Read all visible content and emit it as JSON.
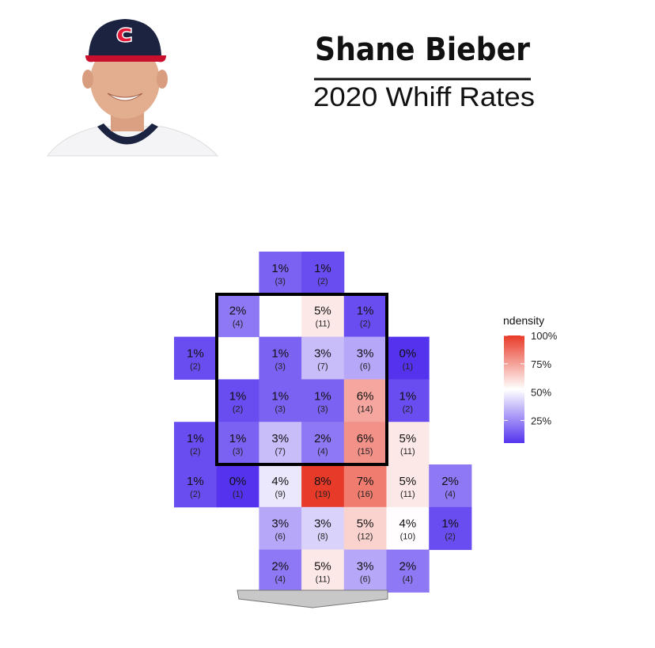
{
  "chart_data": {
    "type": "heatmap",
    "title": "Shane Bieber",
    "subtitle": "2020 Whiff Rates",
    "legend_title": "ndensity",
    "colors": {
      "low": "#5533ee",
      "mid": "#ffffff",
      "high": "#e83a28"
    },
    "clim": [
      5,
      100
    ],
    "cticks": [
      {
        "value": 25,
        "label": "25%"
      },
      {
        "value": 50,
        "label": "50%"
      },
      {
        "value": 75,
        "label": "75%"
      },
      {
        "value": 100,
        "label": "100%"
      }
    ],
    "values": [
      [
        null,
        null,
        1,
        1,
        null,
        null,
        null
      ],
      [
        null,
        2,
        null,
        5,
        1,
        null,
        null
      ],
      [
        1,
        null,
        1,
        3,
        3,
        0,
        null
      ],
      [
        null,
        1,
        1,
        1,
        6,
        1,
        null
      ],
      [
        1,
        1,
        3,
        2,
        6,
        5,
        null
      ],
      [
        1,
        0,
        4,
        8,
        7,
        5,
        2
      ],
      [
        null,
        null,
        3,
        3,
        5,
        4,
        1
      ],
      [
        null,
        null,
        2,
        5,
        3,
        2,
        null
      ]
    ],
    "value_labels": [
      [
        null,
        null,
        "1%",
        "1%",
        null,
        null,
        null
      ],
      [
        null,
        "2%",
        null,
        "5%",
        "1%",
        null,
        null
      ],
      [
        "1%",
        null,
        "1%",
        "3%",
        "3%",
        "0%",
        null
      ],
      [
        null,
        "1%",
        "1%",
        "1%",
        "6%",
        "1%",
        null
      ],
      [
        "1%",
        "1%",
        "3%",
        "2%",
        "6%",
        "5%",
        null
      ],
      [
        "1%",
        "0%",
        "4%",
        "8%",
        "7%",
        "5%",
        "2%"
      ],
      [
        null,
        null,
        "3%",
        "3%",
        "5%",
        "4%",
        "1%"
      ],
      [
        null,
        null,
        "2%",
        "5%",
        "3%",
        "2%",
        null
      ]
    ],
    "counts": [
      [
        null,
        null,
        3,
        2,
        null,
        null,
        null
      ],
      [
        null,
        4,
        null,
        11,
        2,
        null,
        null
      ],
      [
        2,
        null,
        3,
        7,
        6,
        1,
        null
      ],
      [
        null,
        2,
        3,
        3,
        14,
        2,
        null
      ],
      [
        2,
        3,
        7,
        4,
        15,
        11,
        null
      ],
      [
        2,
        1,
        9,
        19,
        16,
        11,
        4
      ],
      [
        null,
        null,
        6,
        8,
        12,
        10,
        2
      ],
      [
        null,
        null,
        4,
        11,
        6,
        4,
        null
      ]
    ],
    "count_labels": [
      [
        null,
        null,
        "(3)",
        "(2)",
        null,
        null,
        null
      ],
      [
        null,
        "(4)",
        null,
        "(11)",
        "(2)",
        null,
        null
      ],
      [
        "(2)",
        null,
        "(3)",
        "(7)",
        "(6)",
        "(1)",
        null
      ],
      [
        null,
        "(2)",
        "(3)",
        "(3)",
        "(14)",
        "(2)",
        null
      ],
      [
        "(2)",
        "(3)",
        "(7)",
        "(4)",
        "(15)",
        "(11)",
        null
      ],
      [
        "(2)",
        "(1)",
        "(9)",
        "(19)",
        "(16)",
        "(11)",
        "(4)"
      ],
      [
        null,
        null,
        "(6)",
        "(8)",
        "(12)",
        "(10)",
        "(2)"
      ],
      [
        null,
        null,
        "(4)",
        "(11)",
        "(6)",
        "(4)",
        null
      ]
    ],
    "density": [
      [
        null,
        null,
        16,
        11,
        null,
        null,
        null
      ],
      [
        null,
        21,
        null,
        58,
        11,
        null,
        null
      ],
      [
        11,
        null,
        16,
        37,
        32,
        5,
        null
      ],
      [
        null,
        11,
        16,
        16,
        74,
        11,
        null
      ],
      [
        11,
        16,
        37,
        21,
        79,
        58,
        null
      ],
      [
        11,
        5,
        47,
        100,
        84,
        58,
        21
      ],
      [
        null,
        null,
        32,
        42,
        63,
        53,
        11
      ],
      [
        null,
        null,
        21,
        58,
        32,
        21,
        null
      ]
    ]
  }
}
